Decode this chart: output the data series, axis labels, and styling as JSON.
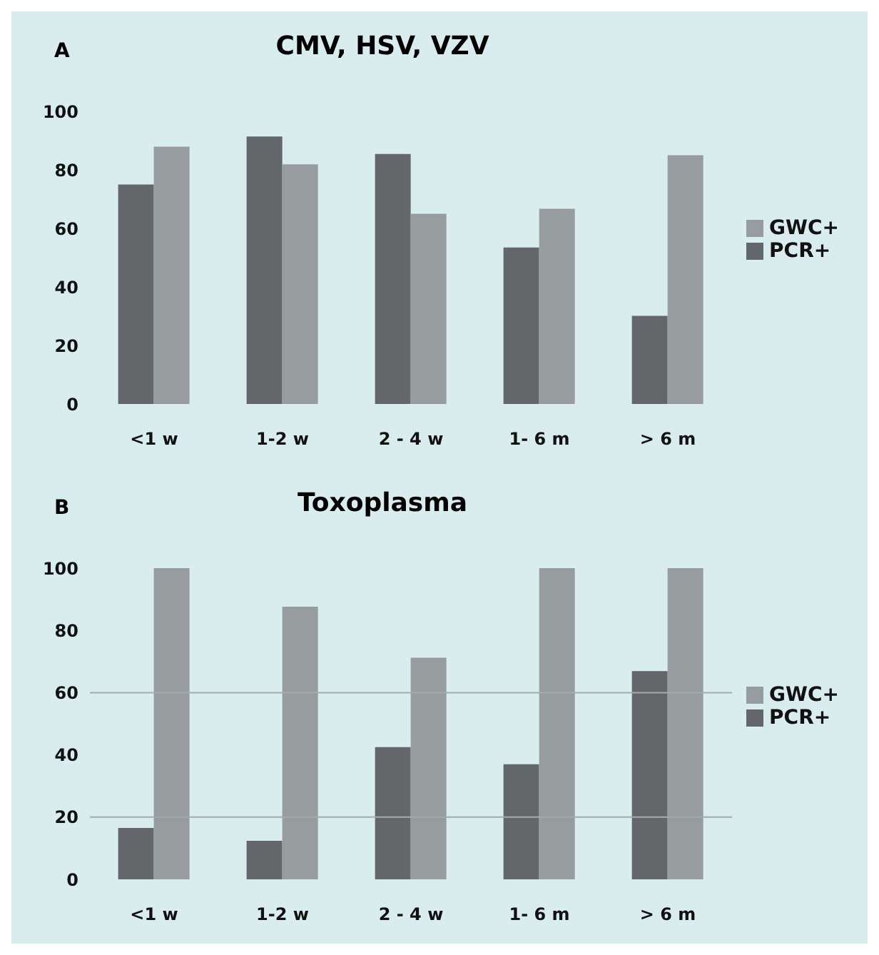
{
  "chart_data": [
    {
      "type": "bar",
      "title": "CMV, HSV, VZV",
      "annotations": [
        "A"
      ],
      "categories": [
        "<1 w",
        "1-2 w",
        "2 - 4 w",
        "1- 6 m",
        "> 6 m"
      ],
      "series": [
        {
          "name": "PCR+",
          "color": "#646769",
          "values": [
            75,
            91.4,
            85.4,
            53.5,
            30.1
          ]
        },
        {
          "name": "GWC+",
          "color": "#979c9e",
          "values": [
            87.9,
            81.9,
            65,
            66.7,
            85
          ]
        }
      ],
      "ylim": [
        0,
        100
      ],
      "yticks": [
        0,
        20,
        40,
        60,
        80,
        100
      ],
      "grid": false,
      "legend": "right"
    },
    {
      "type": "bar",
      "title": "Toxoplasma",
      "annotations": [
        "B"
      ],
      "categories": [
        "<1 w",
        "1-2 w",
        "2 - 4 w",
        "1- 6 m",
        "> 6 m"
      ],
      "series": [
        {
          "name": "PCR+",
          "color": "#646769",
          "values": [
            16.5,
            12.4,
            42.5,
            37,
            66.9
          ]
        },
        {
          "name": "GWC+",
          "color": "#979c9e",
          "values": [
            100,
            87.6,
            71.2,
            100,
            100
          ]
        }
      ],
      "ylim": [
        0,
        100
      ],
      "yticks": [
        0,
        20,
        40,
        60,
        80,
        100
      ],
      "grid": false,
      "legend": "right",
      "ref_lines": [
        {
          "axis": "y",
          "value": 20,
          "color": "#a3abad"
        },
        {
          "axis": "y",
          "value": 60,
          "color": "#a3abad"
        }
      ]
    }
  ]
}
